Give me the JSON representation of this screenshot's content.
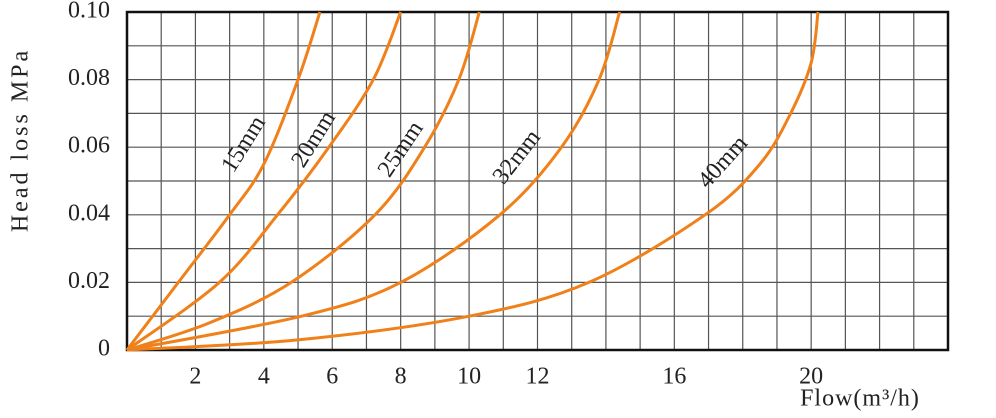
{
  "chart_data": {
    "type": "line",
    "y_label": "Head loss MPa",
    "x_label": "Flow(m³/h)",
    "xlim": [
      0,
      24
    ],
    "ylim": [
      0,
      0.1
    ],
    "xticks": [
      2,
      4,
      6,
      8,
      10,
      12,
      16,
      20
    ],
    "yticks": [
      0,
      0.02,
      0.04,
      0.06,
      0.08,
      {
        "value": 0.1,
        "label": "0.10"
      }
    ],
    "minor_xticks": [
      1,
      3,
      5,
      7,
      9,
      11,
      13,
      14,
      15,
      17,
      18,
      19,
      21,
      22,
      23
    ],
    "minor_yticks": [
      0.01,
      0.03,
      0.05,
      0.07,
      0.09
    ],
    "grid": true,
    "series": [
      {
        "name": "15mm",
        "color": "#f08019",
        "x": [
          0,
          1.5,
          3,
          4,
          5,
          5.64
        ],
        "values": [
          0,
          0.02,
          0.04,
          0.055,
          0.08,
          0.1
        ]
      },
      {
        "name": "20mm",
        "color": "#f08019",
        "x": [
          0,
          2.7,
          4.4,
          5.9,
          7.2,
          8
        ],
        "values": [
          0,
          0.02,
          0.04,
          0.06,
          0.08,
          0.1
        ]
      },
      {
        "name": "25mm",
        "color": "#f08019",
        "x": [
          0,
          2.4,
          4.8,
          7.25,
          8.7,
          9.7,
          10.3
        ],
        "values": [
          0,
          0.008,
          0.02,
          0.04,
          0.06,
          0.08,
          0.1
        ]
      },
      {
        "name": "32mm",
        "color": "#f08019",
        "x": [
          0,
          5.1,
          8,
          10.9,
          12.7,
          13.8,
          14.4
        ],
        "values": [
          0,
          0.01,
          0.02,
          0.04,
          0.06,
          0.08,
          0.1
        ]
      },
      {
        "name": "40mm",
        "color": "#f08019",
        "x": [
          0,
          5,
          10,
          13.5,
          16.9,
          18.5,
          19.4,
          20,
          20.2
        ],
        "values": [
          0,
          0.003,
          0.01,
          0.02,
          0.04,
          0.055,
          0.07,
          0.085,
          0.1
        ]
      }
    ]
  }
}
